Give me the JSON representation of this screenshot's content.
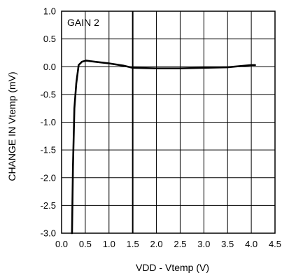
{
  "chart_data": {
    "type": "line",
    "xlabel": "VDD - Vtemp (V)",
    "ylabel": "CHANGE IN Vtemp (mV)",
    "annotation": "GAIN 2",
    "xlim": [
      0.0,
      4.5
    ],
    "ylim": [
      -3.0,
      1.0
    ],
    "x_ticks": [
      0.0,
      0.5,
      1.0,
      1.5,
      2.0,
      2.5,
      3.0,
      3.5,
      4.0,
      4.5
    ],
    "x_tick_labels": [
      "0.0",
      "0.5",
      "1.0",
      "1.5",
      "2.0",
      "2.5",
      "3.0",
      "3.5",
      "4.0",
      "4.5"
    ],
    "y_ticks": [
      1.0,
      0.5,
      0.0,
      -0.5,
      -1.0,
      -1.5,
      -2.0,
      -2.5,
      -3.0
    ],
    "y_tick_labels": [
      "1.0",
      "0.5",
      "0.0",
      "-0.5",
      "-1.0",
      "-1.5",
      "-2.0",
      "-2.5",
      "-3.0"
    ],
    "grid": true,
    "major_vertical_line_at": 1.5,
    "series": [
      {
        "x": [
          0.22,
          0.24,
          0.27,
          0.31,
          0.36,
          0.43,
          0.52,
          0.6,
          0.8,
          1.0,
          1.3,
          1.5,
          2.0,
          2.5,
          3.0,
          3.5,
          4.0,
          4.08
        ],
        "y": [
          -3.0,
          -1.8,
          -0.75,
          -0.3,
          0.03,
          0.09,
          0.11,
          0.1,
          0.08,
          0.06,
          0.02,
          -0.02,
          -0.03,
          -0.03,
          -0.02,
          -0.01,
          0.03,
          0.03
        ],
        "color": "#000000"
      }
    ]
  }
}
